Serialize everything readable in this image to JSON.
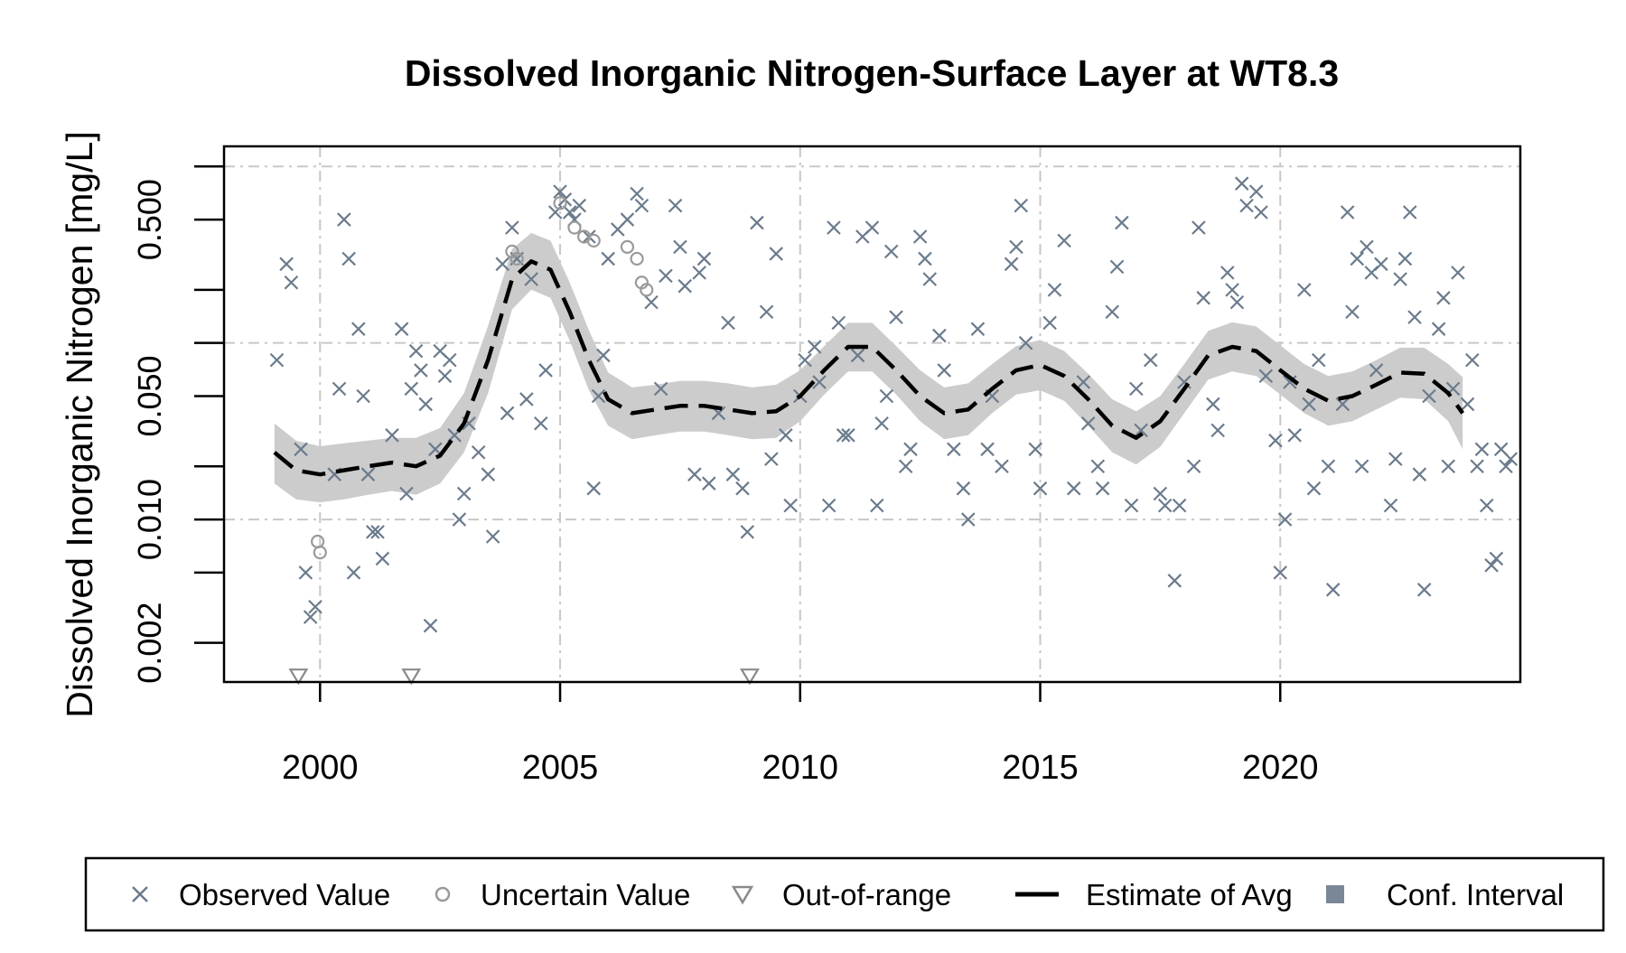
{
  "chart_data": {
    "type": "scatter",
    "title": "Dissolved Inorganic Nitrogen-Surface Layer at WT8.3",
    "xlabel": "",
    "ylabel": "Dissolved Inorganic Nitrogen [mg/L]",
    "y_scale": "log",
    "xlim": [
      1998.0,
      2025.0
    ],
    "ylim": [
      0.0012,
      1.3
    ],
    "x_ticks": [
      2000,
      2005,
      2010,
      2015,
      2020
    ],
    "x_tick_labels": [
      "2000",
      "2005",
      "2010",
      "2015",
      "2020"
    ],
    "y_ticks": [
      0.001,
      0.002,
      0.005,
      0.01,
      0.02,
      0.05,
      0.1,
      0.2,
      0.5,
      1.0
    ],
    "y_tick_labels": [
      "",
      "0.002",
      "",
      "0.010",
      "",
      "0.050",
      "",
      "",
      "0.500",
      ""
    ],
    "y_gridlines": [
      0.01,
      0.1,
      1.0
    ],
    "x_gridlines": [
      2000,
      2005,
      2010,
      2015,
      2020
    ],
    "grid": true,
    "legend": {
      "position": "bottom",
      "entries": [
        {
          "label": "Observed Value",
          "symbol": "cross"
        },
        {
          "label": "Uncertain Value",
          "symbol": "circle"
        },
        {
          "label": "Out-of-range",
          "symbol": "triangle-down"
        },
        {
          "label": "Estimate of Avg",
          "symbol": "dashed-line"
        },
        {
          "label": "Conf. Interval",
          "symbol": "filled-square"
        }
      ]
    },
    "colors": {
      "observed": "#6b7b8c",
      "uncertain": "#9a9a9a",
      "out_of_range": "#8a8a8a",
      "estimate": "#000000",
      "conf_interval": "#cccccc",
      "legend_ci": "#7a8796",
      "grid": "#c8c8c8"
    },
    "observed": [
      [
        1999.1,
        0.08
      ],
      [
        1999.3,
        0.28
      ],
      [
        1999.4,
        0.22
      ],
      [
        1999.6,
        0.025
      ],
      [
        1999.7,
        0.005
      ],
      [
        1999.8,
        0.0028
      ],
      [
        1999.9,
        0.0032
      ],
      [
        2000.3,
        0.018
      ],
      [
        2000.4,
        0.055
      ],
      [
        2000.5,
        0.5
      ],
      [
        2000.6,
        0.3
      ],
      [
        2000.7,
        0.005
      ],
      [
        2000.8,
        0.12
      ],
      [
        2000.9,
        0.05
      ],
      [
        2001.0,
        0.018
      ],
      [
        2001.1,
        0.0085
      ],
      [
        2001.2,
        0.0085
      ],
      [
        2001.3,
        0.006
      ],
      [
        2001.5,
        0.03
      ],
      [
        2001.7,
        0.12
      ],
      [
        2001.8,
        0.014
      ],
      [
        2001.9,
        0.055
      ],
      [
        2002.0,
        0.09
      ],
      [
        2002.1,
        0.07
      ],
      [
        2002.2,
        0.045
      ],
      [
        2002.3,
        0.0025
      ],
      [
        2002.4,
        0.025
      ],
      [
        2002.5,
        0.09
      ],
      [
        2002.6,
        0.065
      ],
      [
        2002.7,
        0.08
      ],
      [
        2002.8,
        0.03
      ],
      [
        2002.9,
        0.01
      ],
      [
        2003.0,
        0.014
      ],
      [
        2003.1,
        0.035
      ],
      [
        2003.3,
        0.024
      ],
      [
        2003.5,
        0.018
      ],
      [
        2003.6,
        0.008
      ],
      [
        2003.8,
        0.28
      ],
      [
        2003.9,
        0.04
      ],
      [
        2004.0,
        0.45
      ],
      [
        2004.1,
        0.3
      ],
      [
        2004.3,
        0.048
      ],
      [
        2004.4,
        0.23
      ],
      [
        2004.6,
        0.035
      ],
      [
        2004.7,
        0.07
      ],
      [
        2004.9,
        0.55
      ],
      [
        2005.0,
        0.72
      ],
      [
        2005.1,
        0.65
      ],
      [
        2005.2,
        0.55
      ],
      [
        2005.3,
        0.5
      ],
      [
        2005.4,
        0.6
      ],
      [
        2005.6,
        0.4
      ],
      [
        2005.7,
        0.015
      ],
      [
        2005.8,
        0.05
      ],
      [
        2005.9,
        0.085
      ],
      [
        2006.0,
        0.3
      ],
      [
        2006.2,
        0.44
      ],
      [
        2006.4,
        0.5
      ],
      [
        2006.6,
        0.7
      ],
      [
        2006.7,
        0.6
      ],
      [
        2006.9,
        0.17
      ],
      [
        2007.1,
        0.055
      ],
      [
        2007.2,
        0.24
      ],
      [
        2007.4,
        0.6
      ],
      [
        2007.5,
        0.35
      ],
      [
        2007.6,
        0.21
      ],
      [
        2007.8,
        0.018
      ],
      [
        2007.9,
        0.25
      ],
      [
        2008.0,
        0.3
      ],
      [
        2008.1,
        0.016
      ],
      [
        2008.3,
        0.04
      ],
      [
        2008.5,
        0.13
      ],
      [
        2008.6,
        0.018
      ],
      [
        2008.8,
        0.015
      ],
      [
        2008.9,
        0.0085
      ],
      [
        2009.1,
        0.48
      ],
      [
        2009.3,
        0.15
      ],
      [
        2009.4,
        0.022
      ],
      [
        2009.5,
        0.32
      ],
      [
        2009.7,
        0.03
      ],
      [
        2009.8,
        0.012
      ],
      [
        2010.0,
        0.05
      ],
      [
        2010.1,
        0.08
      ],
      [
        2010.3,
        0.095
      ],
      [
        2010.4,
        0.06
      ],
      [
        2010.6,
        0.012
      ],
      [
        2010.7,
        0.45
      ],
      [
        2010.8,
        0.13
      ],
      [
        2010.9,
        0.03
      ],
      [
        2011.0,
        0.03
      ],
      [
        2011.2,
        0.085
      ],
      [
        2011.3,
        0.4
      ],
      [
        2011.5,
        0.45
      ],
      [
        2011.6,
        0.012
      ],
      [
        2011.7,
        0.035
      ],
      [
        2011.8,
        0.05
      ],
      [
        2011.9,
        0.33
      ],
      [
        2012.0,
        0.14
      ],
      [
        2012.2,
        0.02
      ],
      [
        2012.3,
        0.025
      ],
      [
        2012.5,
        0.4
      ],
      [
        2012.6,
        0.3
      ],
      [
        2012.7,
        0.23
      ],
      [
        2012.9,
        0.11
      ],
      [
        2013.0,
        0.07
      ],
      [
        2013.2,
        0.025
      ],
      [
        2013.4,
        0.015
      ],
      [
        2013.5,
        0.01
      ],
      [
        2013.7,
        0.12
      ],
      [
        2013.9,
        0.025
      ],
      [
        2014.0,
        0.05
      ],
      [
        2014.2,
        0.02
      ],
      [
        2014.4,
        0.28
      ],
      [
        2014.5,
        0.35
      ],
      [
        2014.6,
        0.6
      ],
      [
        2014.7,
        0.1
      ],
      [
        2014.9,
        0.025
      ],
      [
        2015.0,
        0.015
      ],
      [
        2015.2,
        0.13
      ],
      [
        2015.3,
        0.2
      ],
      [
        2015.5,
        0.38
      ],
      [
        2015.7,
        0.015
      ],
      [
        2015.9,
        0.06
      ],
      [
        2016.0,
        0.035
      ],
      [
        2016.2,
        0.02
      ],
      [
        2016.3,
        0.015
      ],
      [
        2016.5,
        0.15
      ],
      [
        2016.6,
        0.27
      ],
      [
        2016.7,
        0.48
      ],
      [
        2016.9,
        0.012
      ],
      [
        2017.0,
        0.055
      ],
      [
        2017.1,
        0.032
      ],
      [
        2017.3,
        0.08
      ],
      [
        2017.5,
        0.014
      ],
      [
        2017.6,
        0.012
      ],
      [
        2017.8,
        0.0045
      ],
      [
        2017.9,
        0.012
      ],
      [
        2018.0,
        0.06
      ],
      [
        2018.2,
        0.02
      ],
      [
        2018.3,
        0.45
      ],
      [
        2018.4,
        0.18
      ],
      [
        2018.6,
        0.045
      ],
      [
        2018.7,
        0.032
      ],
      [
        2018.9,
        0.25
      ],
      [
        2019.0,
        0.2
      ],
      [
        2019.1,
        0.17
      ],
      [
        2019.2,
        0.8
      ],
      [
        2019.3,
        0.6
      ],
      [
        2019.5,
        0.72
      ],
      [
        2019.6,
        0.55
      ],
      [
        2019.7,
        0.065
      ],
      [
        2019.9,
        0.028
      ],
      [
        2020.0,
        0.005
      ],
      [
        2020.1,
        0.01
      ],
      [
        2020.2,
        0.06
      ],
      [
        2020.3,
        0.03
      ],
      [
        2020.5,
        0.2
      ],
      [
        2020.6,
        0.045
      ],
      [
        2020.7,
        0.015
      ],
      [
        2020.8,
        0.08
      ],
      [
        2021.0,
        0.02
      ],
      [
        2021.1,
        0.004
      ],
      [
        2021.3,
        0.045
      ],
      [
        2021.4,
        0.55
      ],
      [
        2021.5,
        0.15
      ],
      [
        2021.6,
        0.3
      ],
      [
        2021.7,
        0.02
      ],
      [
        2021.8,
        0.35
      ],
      [
        2021.9,
        0.25
      ],
      [
        2022.0,
        0.07
      ],
      [
        2022.1,
        0.28
      ],
      [
        2022.3,
        0.012
      ],
      [
        2022.4,
        0.022
      ],
      [
        2022.5,
        0.23
      ],
      [
        2022.6,
        0.3
      ],
      [
        2022.7,
        0.55
      ],
      [
        2022.8,
        0.14
      ],
      [
        2022.9,
        0.018
      ],
      [
        2023.0,
        0.004
      ],
      [
        2023.1,
        0.05
      ],
      [
        2023.3,
        0.12
      ],
      [
        2023.4,
        0.18
      ],
      [
        2023.5,
        0.02
      ],
      [
        2023.6,
        0.055
      ],
      [
        2023.7,
        0.25
      ],
      [
        2023.9,
        0.045
      ],
      [
        2024.0,
        0.08
      ],
      [
        2024.1,
        0.02
      ],
      [
        2024.2,
        0.025
      ],
      [
        2024.3,
        0.012
      ],
      [
        2024.4,
        0.0055
      ],
      [
        2024.5,
        0.006
      ],
      [
        2024.6,
        0.025
      ],
      [
        2024.7,
        0.02
      ],
      [
        2024.8,
        0.022
      ]
    ],
    "uncertain": [
      [
        1999.95,
        0.0075
      ],
      [
        2000.0,
        0.0065
      ],
      [
        2004.0,
        0.33
      ],
      [
        2004.1,
        0.3
      ],
      [
        2005.0,
        0.62
      ],
      [
        2005.3,
        0.45
      ],
      [
        2005.5,
        0.4
      ],
      [
        2005.7,
        0.38
      ],
      [
        2006.4,
        0.35
      ],
      [
        2006.6,
        0.3
      ],
      [
        2006.7,
        0.22
      ],
      [
        2006.8,
        0.2
      ]
    ],
    "out_of_range": [
      [
        1999.55,
        0.0013
      ],
      [
        2001.9,
        0.0013
      ],
      [
        2008.95,
        0.0013
      ]
    ],
    "estimate": [
      [
        1999.05,
        0.024
      ],
      [
        1999.5,
        0.019
      ],
      [
        2000.0,
        0.018
      ],
      [
        2000.5,
        0.019
      ],
      [
        2001.0,
        0.02
      ],
      [
        2001.5,
        0.021
      ],
      [
        2002.0,
        0.02
      ],
      [
        2002.5,
        0.023
      ],
      [
        2003.0,
        0.035
      ],
      [
        2003.5,
        0.08
      ],
      [
        2004.0,
        0.23
      ],
      [
        2004.4,
        0.29
      ],
      [
        2004.8,
        0.26
      ],
      [
        2005.2,
        0.15
      ],
      [
        2005.6,
        0.08
      ],
      [
        2006.0,
        0.048
      ],
      [
        2006.5,
        0.04
      ],
      [
        2007.0,
        0.042
      ],
      [
        2007.5,
        0.044
      ],
      [
        2008.0,
        0.044
      ],
      [
        2008.5,
        0.042
      ],
      [
        2009.0,
        0.04
      ],
      [
        2009.5,
        0.041
      ],
      [
        2010.0,
        0.05
      ],
      [
        2010.5,
        0.07
      ],
      [
        2011.0,
        0.095
      ],
      [
        2011.5,
        0.095
      ],
      [
        2012.0,
        0.07
      ],
      [
        2012.5,
        0.05
      ],
      [
        2013.0,
        0.04
      ],
      [
        2013.5,
        0.042
      ],
      [
        2014.0,
        0.055
      ],
      [
        2014.5,
        0.07
      ],
      [
        2015.0,
        0.075
      ],
      [
        2015.5,
        0.065
      ],
      [
        2016.0,
        0.048
      ],
      [
        2016.5,
        0.034
      ],
      [
        2017.0,
        0.029
      ],
      [
        2017.5,
        0.036
      ],
      [
        2018.0,
        0.055
      ],
      [
        2018.5,
        0.085
      ],
      [
        2019.0,
        0.095
      ],
      [
        2019.5,
        0.09
      ],
      [
        2020.0,
        0.07
      ],
      [
        2020.5,
        0.055
      ],
      [
        2021.0,
        0.047
      ],
      [
        2021.5,
        0.05
      ],
      [
        2022.0,
        0.058
      ],
      [
        2022.5,
        0.068
      ],
      [
        2023.0,
        0.067
      ],
      [
        2023.5,
        0.052
      ],
      [
        2023.8,
        0.04
      ]
    ],
    "conf_interval_upper": [
      [
        1999.05,
        0.035
      ],
      [
        1999.5,
        0.028
      ],
      [
        2000.0,
        0.026
      ],
      [
        2000.5,
        0.027
      ],
      [
        2001.0,
        0.028
      ],
      [
        2001.5,
        0.029
      ],
      [
        2002.0,
        0.029
      ],
      [
        2002.5,
        0.033
      ],
      [
        2003.0,
        0.052
      ],
      [
        2003.5,
        0.125
      ],
      [
        2004.0,
        0.34
      ],
      [
        2004.4,
        0.42
      ],
      [
        2004.8,
        0.38
      ],
      [
        2005.2,
        0.22
      ],
      [
        2005.6,
        0.118
      ],
      [
        2006.0,
        0.068
      ],
      [
        2006.5,
        0.056
      ],
      [
        2007.0,
        0.058
      ],
      [
        2007.5,
        0.061
      ],
      [
        2008.0,
        0.061
      ],
      [
        2008.5,
        0.059
      ],
      [
        2009.0,
        0.056
      ],
      [
        2009.5,
        0.058
      ],
      [
        2010.0,
        0.07
      ],
      [
        2010.5,
        0.096
      ],
      [
        2011.0,
        0.13
      ],
      [
        2011.5,
        0.13
      ],
      [
        2012.0,
        0.096
      ],
      [
        2012.5,
        0.07
      ],
      [
        2013.0,
        0.056
      ],
      [
        2013.5,
        0.059
      ],
      [
        2014.0,
        0.076
      ],
      [
        2014.5,
        0.096
      ],
      [
        2015.0,
        0.104
      ],
      [
        2015.5,
        0.09
      ],
      [
        2016.0,
        0.067
      ],
      [
        2016.5,
        0.048
      ],
      [
        2017.0,
        0.041
      ],
      [
        2017.5,
        0.05
      ],
      [
        2018.0,
        0.076
      ],
      [
        2018.5,
        0.117
      ],
      [
        2019.0,
        0.131
      ],
      [
        2019.5,
        0.124
      ],
      [
        2020.0,
        0.097
      ],
      [
        2020.5,
        0.076
      ],
      [
        2021.0,
        0.065
      ],
      [
        2021.5,
        0.069
      ],
      [
        2022.0,
        0.08
      ],
      [
        2022.5,
        0.094
      ],
      [
        2023.0,
        0.094
      ],
      [
        2023.5,
        0.076
      ],
      [
        2023.8,
        0.064
      ]
    ],
    "conf_interval_lower": [
      [
        1999.05,
        0.016
      ],
      [
        1999.5,
        0.013
      ],
      [
        2000.0,
        0.0125
      ],
      [
        2000.5,
        0.013
      ],
      [
        2001.0,
        0.0138
      ],
      [
        2001.5,
        0.0145
      ],
      [
        2002.0,
        0.0138
      ],
      [
        2002.5,
        0.016
      ],
      [
        2003.0,
        0.024
      ],
      [
        2003.5,
        0.052
      ],
      [
        2004.0,
        0.155
      ],
      [
        2004.4,
        0.2
      ],
      [
        2004.8,
        0.18
      ],
      [
        2005.2,
        0.103
      ],
      [
        2005.6,
        0.054
      ],
      [
        2006.0,
        0.034
      ],
      [
        2006.5,
        0.0285
      ],
      [
        2007.0,
        0.03
      ],
      [
        2007.5,
        0.0315
      ],
      [
        2008.0,
        0.0315
      ],
      [
        2008.5,
        0.03
      ],
      [
        2009.0,
        0.0285
      ],
      [
        2009.5,
        0.029
      ],
      [
        2010.0,
        0.036
      ],
      [
        2010.5,
        0.051
      ],
      [
        2011.0,
        0.069
      ],
      [
        2011.5,
        0.069
      ],
      [
        2012.0,
        0.051
      ],
      [
        2012.5,
        0.036
      ],
      [
        2013.0,
        0.0285
      ],
      [
        2013.5,
        0.03
      ],
      [
        2014.0,
        0.04
      ],
      [
        2014.5,
        0.051
      ],
      [
        2015.0,
        0.054
      ],
      [
        2015.5,
        0.047
      ],
      [
        2016.0,
        0.034
      ],
      [
        2016.5,
        0.024
      ],
      [
        2017.0,
        0.0205
      ],
      [
        2017.5,
        0.0258
      ],
      [
        2018.0,
        0.04
      ],
      [
        2018.5,
        0.062
      ],
      [
        2019.0,
        0.069
      ],
      [
        2019.5,
        0.065
      ],
      [
        2020.0,
        0.051
      ],
      [
        2020.5,
        0.04
      ],
      [
        2021.0,
        0.034
      ],
      [
        2021.5,
        0.036
      ],
      [
        2022.0,
        0.042
      ],
      [
        2022.5,
        0.049
      ],
      [
        2023.0,
        0.048
      ],
      [
        2023.5,
        0.036
      ],
      [
        2023.8,
        0.025
      ]
    ]
  }
}
